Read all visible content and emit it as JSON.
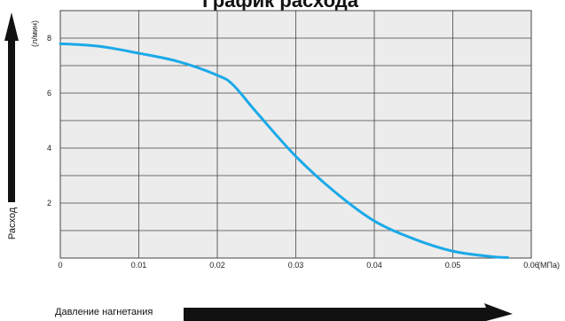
{
  "chart_data": {
    "type": "line",
    "title": "График расхода",
    "ylabel": "Расход",
    "xlabel": "Давление нагнетания",
    "y_unit": "(л/мин)",
    "x_unit": "(МПа)",
    "xlim": [
      0,
      0.06
    ],
    "ylim": [
      0,
      9
    ],
    "x_ticks": [
      {
        "value": 0,
        "label": "0"
      },
      {
        "value": 0.01,
        "label": "0.01"
      },
      {
        "value": 0.02,
        "label": "0.02"
      },
      {
        "value": 0.03,
        "label": "0.03"
      },
      {
        "value": 0.04,
        "label": "0.04"
      },
      {
        "value": 0.05,
        "label": "0.05"
      },
      {
        "value": 0.06,
        "label": "0.06"
      }
    ],
    "y_ticks": [
      {
        "value": 2,
        "label": "2"
      },
      {
        "value": 4,
        "label": "4"
      },
      {
        "value": 6,
        "label": "6"
      },
      {
        "value": 8,
        "label": "8"
      }
    ],
    "grid": true,
    "line_color": "#1ba9e8",
    "series": [
      {
        "x": [
          0,
          0.005,
          0.01,
          0.015,
          0.02,
          0.022,
          0.025,
          0.03,
          0.035,
          0.04,
          0.045,
          0.05,
          0.055,
          0.057
        ],
        "y": [
          7.8,
          7.7,
          7.45,
          7.15,
          6.65,
          6.3,
          5.3,
          3.7,
          2.4,
          1.35,
          0.7,
          0.25,
          0.05,
          0.02
        ]
      }
    ]
  }
}
